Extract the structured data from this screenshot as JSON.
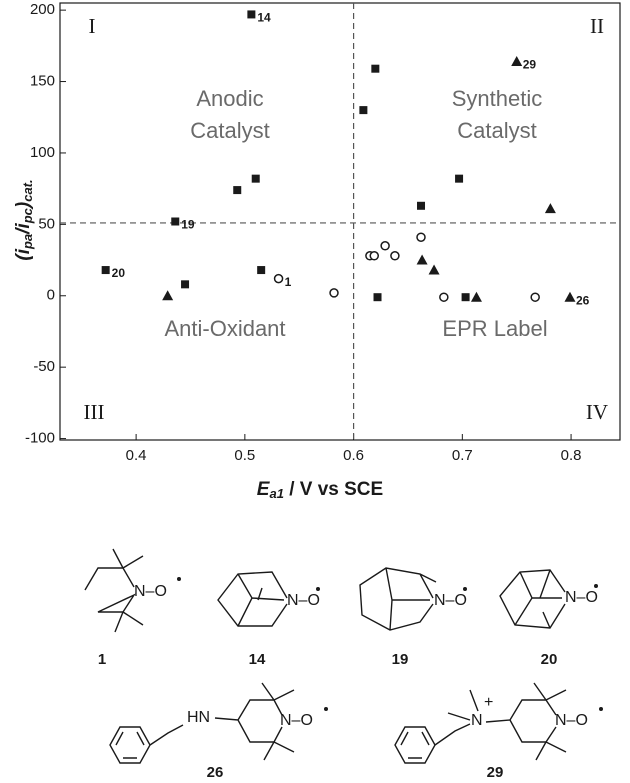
{
  "chart_data": {
    "type": "scatter",
    "xlabel": [
      "E",
      "a1",
      " / V vs SCE"
    ],
    "ylabel": [
      "(i",
      "pa",
      "/i",
      "pc",
      ")",
      "cat."
    ],
    "xlim": [
      0.33,
      0.845
    ],
    "ylim": [
      -101,
      205
    ],
    "xticks": [
      0.4,
      0.5,
      0.6,
      0.7,
      0.8
    ],
    "yticks": [
      200,
      150,
      100,
      50,
      0,
      -50,
      -100
    ],
    "vline": 0.6,
    "hline": 51,
    "quadrants": [
      "I",
      "II",
      "III",
      "IV"
    ],
    "regions": [
      [
        "Anodic",
        "Catalyst"
      ],
      [
        "Synthetic",
        "Catalyst"
      ],
      [
        "Anti-Oxidant"
      ],
      [
        "EPR Label"
      ]
    ],
    "series": [
      {
        "marker": "square",
        "color": "#1a1a1a",
        "x": [
          0.506,
          0.62,
          0.609,
          0.51,
          0.493,
          0.436,
          0.372,
          0.445,
          0.515,
          0.622,
          0.662,
          0.697,
          0.703
        ],
        "values": [
          197,
          159,
          130,
          82,
          74,
          52,
          18,
          8,
          18,
          -1,
          63,
          82,
          -1
        ],
        "labels": [
          "14",
          null,
          null,
          null,
          null,
          "19",
          "20",
          null,
          null,
          null,
          null,
          null,
          null
        ]
      },
      {
        "marker": "triangle",
        "color": "#1a1a1a",
        "x": [
          0.75,
          0.781,
          0.663,
          0.674,
          0.713,
          0.799,
          0.429
        ],
        "values": [
          164,
          61,
          25,
          18,
          -1,
          -1,
          0
        ],
        "labels": [
          "29",
          null,
          null,
          null,
          null,
          "26",
          null
        ]
      },
      {
        "marker": "circle",
        "color": "#1a1a1a",
        "x": [
          0.531,
          0.582,
          0.615,
          0.619,
          0.629,
          0.638,
          0.662,
          0.683,
          0.767
        ],
        "values": [
          12,
          2,
          28,
          28,
          35,
          28,
          41,
          -1,
          -1
        ],
        "labels": [
          "1",
          null,
          null,
          null,
          null,
          null,
          null,
          null,
          null
        ]
      }
    ]
  },
  "structures": [
    {
      "number": "1",
      "atoms": [
        "N–O"
      ]
    },
    {
      "number": "14",
      "atoms": [
        "N–O"
      ]
    },
    {
      "number": "19",
      "atoms": [
        "N–O"
      ]
    },
    {
      "number": "20",
      "atoms": [
        "N–O"
      ]
    },
    {
      "number": "26",
      "atoms": [
        "HN",
        "N–O"
      ]
    },
    {
      "number": "29",
      "atoms": [
        "N",
        "+",
        "N–O"
      ]
    }
  ]
}
